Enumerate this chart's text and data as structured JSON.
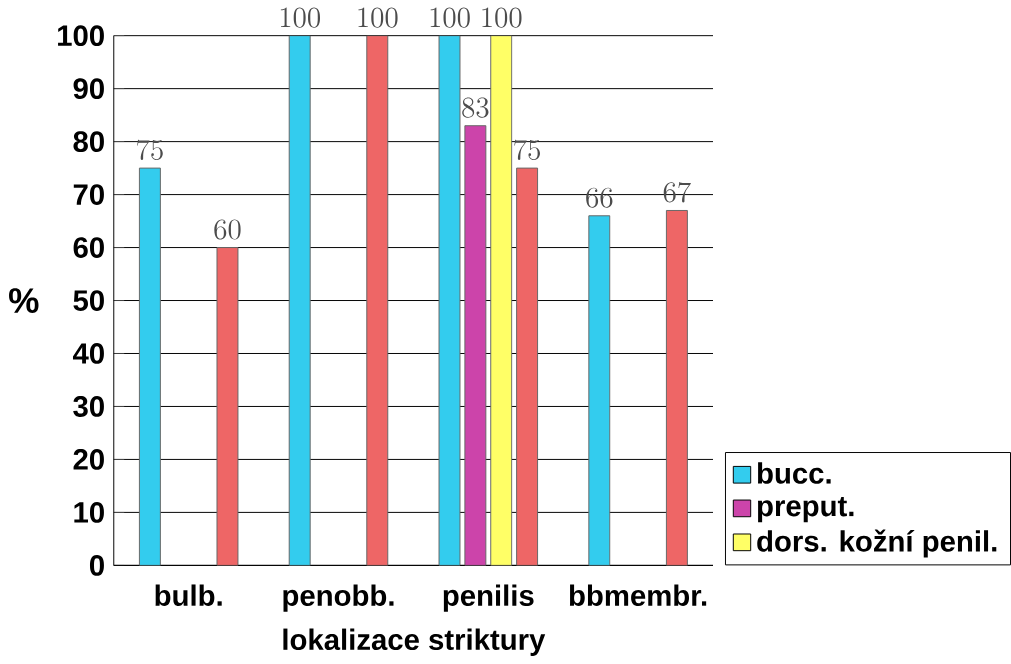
{
  "chart_data": {
    "type": "bar",
    "xlabel": "lokalizace striktury",
    "ylabel": "%",
    "categories": [
      "bulb.",
      "penobb.",
      "penilis",
      "bbmembr."
    ],
    "series": [
      {
        "name": "bucc.",
        "color": "#33ccee",
        "values": [
          75,
          100,
          100,
          66
        ]
      },
      {
        "name": "preput.",
        "color": "#cc44aa",
        "values": [
          null,
          null,
          83,
          null
        ]
      },
      {
        "name": "dors. kožní penil.",
        "color": "#ffff66",
        "values": [
          null,
          null,
          100,
          null
        ]
      },
      {
        "color": "#ee6666",
        "values": [
          60,
          100,
          75,
          67
        ]
      }
    ],
    "ylim": [
      0,
      100
    ],
    "yticks": [
      0,
      10,
      20,
      30,
      40,
      50,
      60,
      70,
      80,
      90,
      100
    ],
    "grid": "y",
    "legend": "right",
    "data_labels": true
  }
}
